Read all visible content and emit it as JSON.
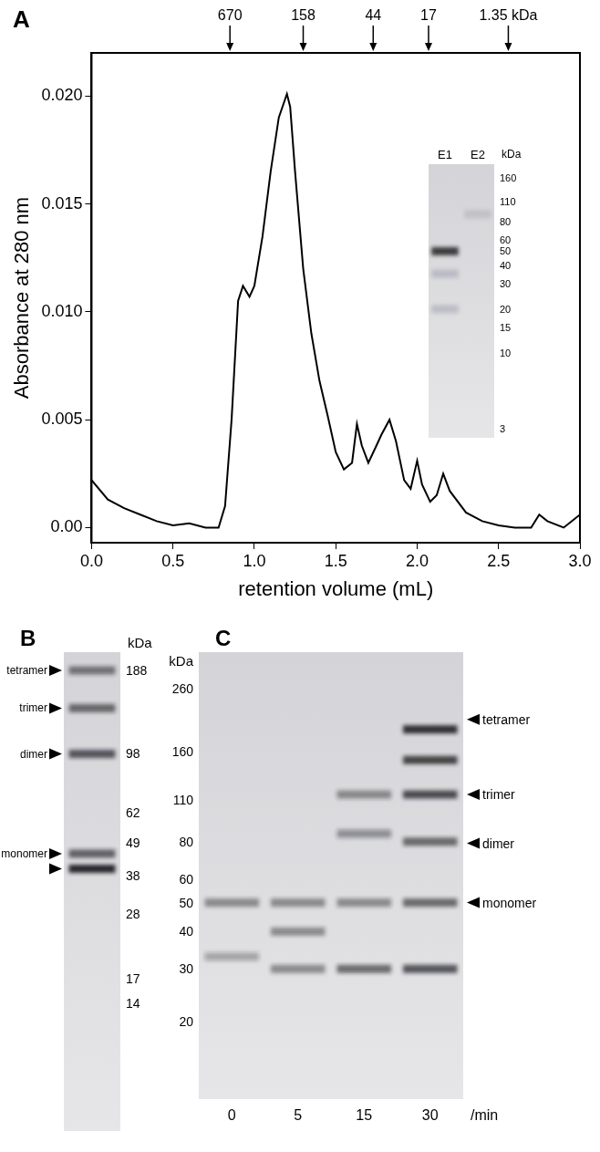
{
  "chart_data": {
    "type": "line",
    "panel_label": "A",
    "color": "#000000",
    "marker": "none",
    "line_style": "solid",
    "grid": false,
    "x_label": "retention volume (mL)",
    "y_label": "Absorbance at 280 nm",
    "x": [
      0.0,
      0.1,
      0.2,
      0.3,
      0.4,
      0.5,
      0.6,
      0.7,
      0.78,
      0.82,
      0.86,
      0.9,
      0.93,
      0.97,
      1.0,
      1.05,
      1.1,
      1.15,
      1.2,
      1.22,
      1.25,
      1.3,
      1.35,
      1.4,
      1.45,
      1.5,
      1.55,
      1.6,
      1.63,
      1.66,
      1.7,
      1.75,
      1.78,
      1.83,
      1.87,
      1.92,
      1.96,
      2.0,
      2.03,
      2.08,
      2.12,
      2.16,
      2.2,
      2.3,
      2.4,
      2.5,
      2.6,
      2.7,
      2.75,
      2.8,
      2.9,
      3.0
    ],
    "values": [
      0.0022,
      0.0013,
      0.0009,
      0.0006,
      0.0003,
      0.0001,
      0.0002,
      0.0,
      0.0,
      0.001,
      0.005,
      0.0105,
      0.0112,
      0.0107,
      0.0112,
      0.0135,
      0.0165,
      0.019,
      0.0201,
      0.0195,
      0.0165,
      0.012,
      0.009,
      0.0068,
      0.0052,
      0.0035,
      0.0027,
      0.003,
      0.0048,
      0.0038,
      0.003,
      0.0038,
      0.0043,
      0.005,
      0.004,
      0.0022,
      0.0018,
      0.0031,
      0.002,
      0.0012,
      0.0015,
      0.0025,
      0.0017,
      0.0007,
      0.0003,
      0.0001,
      0.0,
      0.0,
      0.0006,
      0.0003,
      0.0,
      0.0006
    ],
    "xlim": [
      0,
      3
    ],
    "xticks": [
      {
        "value": 0,
        "label": "0.0"
      },
      {
        "value": 0.5,
        "label": "0.5"
      },
      {
        "value": 1,
        "label": "1.0"
      },
      {
        "value": 1.5,
        "label": "1.5"
      },
      {
        "value": 2,
        "label": "2.0"
      },
      {
        "value": 2.5,
        "label": "2.5"
      },
      {
        "value": 3,
        "label": "3.0"
      }
    ],
    "ylim": [
      -0.0007,
      0.022
    ],
    "yticks": [
      {
        "value": 0,
        "label": "0.00"
      },
      0.005,
      {
        "value": 0.01,
        "label": "0.010"
      },
      0.015,
      {
        "value": 0.02,
        "label": "0.020"
      }
    ],
    "annotations": [
      {
        "x": 0.85,
        "label": "670"
      },
      {
        "x": 1.3,
        "label": "158"
      },
      {
        "x": 1.73,
        "label": "44"
      },
      {
        "x": 2.07,
        "label": "17"
      },
      {
        "x": 2.56,
        "label": "1.35 kDa"
      }
    ]
  },
  "inset": {
    "unit": "kDa",
    "lanes": [
      "E1",
      "E2"
    ],
    "ladder": [
      160,
      110,
      80,
      60,
      50,
      40,
      30,
      20,
      15,
      10,
      3
    ],
    "bands": [
      {
        "lane": "E1",
        "kDa": 50,
        "intensity": 0.85
      },
      {
        "lane": "E1",
        "kDa": 35,
        "intensity": 0.15
      },
      {
        "lane": "E1",
        "kDa": 20,
        "intensity": 0.15
      },
      {
        "lane": "E2",
        "kDa": 90,
        "intensity": 0.1
      }
    ]
  },
  "panels": [
    {
      "label": "B",
      "unit": "kDa",
      "ladder": [
        188,
        98,
        62,
        49,
        38,
        28,
        17,
        14
      ],
      "bands": [
        {
          "kDa": 188,
          "intensity": 0.55
        },
        {
          "kDa": 140,
          "intensity": 0.6
        },
        {
          "kDa": 98,
          "intensity": 0.7
        },
        {
          "kDa": 45,
          "intensity": 0.65
        },
        {
          "kDa": 40,
          "intensity": 0.95
        }
      ],
      "markers": [
        {
          "label": "tetramer",
          "kDa": 188
        },
        {
          "label": "trimer",
          "kDa": 140
        },
        {
          "label": "dimer",
          "kDa": 98
        },
        {
          "label": "monomer",
          "kDa": 45
        },
        {
          "kDa": 40
        }
      ]
    },
    {
      "label": "C",
      "unit": "kDa",
      "ladder": [
        260,
        160,
        110,
        80,
        60,
        50,
        40,
        30,
        20
      ],
      "lanes": [
        "0",
        "5",
        "15",
        "30"
      ],
      "lane_unit": "/min",
      "bands": [
        {
          "lane": "0",
          "kDa": 50,
          "intensity": 0.45
        },
        {
          "lane": "0",
          "kDa": 33,
          "intensity": 0.3
        },
        {
          "lane": "5",
          "kDa": 50,
          "intensity": 0.45
        },
        {
          "lane": "5",
          "kDa": 40,
          "intensity": 0.45
        },
        {
          "lane": "5",
          "kDa": 30,
          "intensity": 0.45
        },
        {
          "lane": "15",
          "kDa": 115,
          "intensity": 0.45
        },
        {
          "lane": "15",
          "kDa": 85,
          "intensity": 0.4
        },
        {
          "lane": "15",
          "kDa": 50,
          "intensity": 0.45
        },
        {
          "lane": "15",
          "kDa": 30,
          "intensity": 0.6
        },
        {
          "lane": "30",
          "kDa": 190,
          "intensity": 0.9
        },
        {
          "lane": "30",
          "kDa": 150,
          "intensity": 0.8
        },
        {
          "lane": "30",
          "kDa": 115,
          "intensity": 0.75
        },
        {
          "lane": "30",
          "kDa": 80,
          "intensity": 0.6
        },
        {
          "lane": "30",
          "kDa": 50,
          "intensity": 0.6
        },
        {
          "lane": "30",
          "kDa": 30,
          "intensity": 0.7
        }
      ],
      "markers": [
        {
          "label": "tetramer",
          "kDa": 205
        },
        {
          "label": "trimer",
          "kDa": 115
        },
        {
          "label": "dimer",
          "kDa": 79
        },
        {
          "label": "monomer",
          "kDa": 50
        }
      ]
    }
  ]
}
